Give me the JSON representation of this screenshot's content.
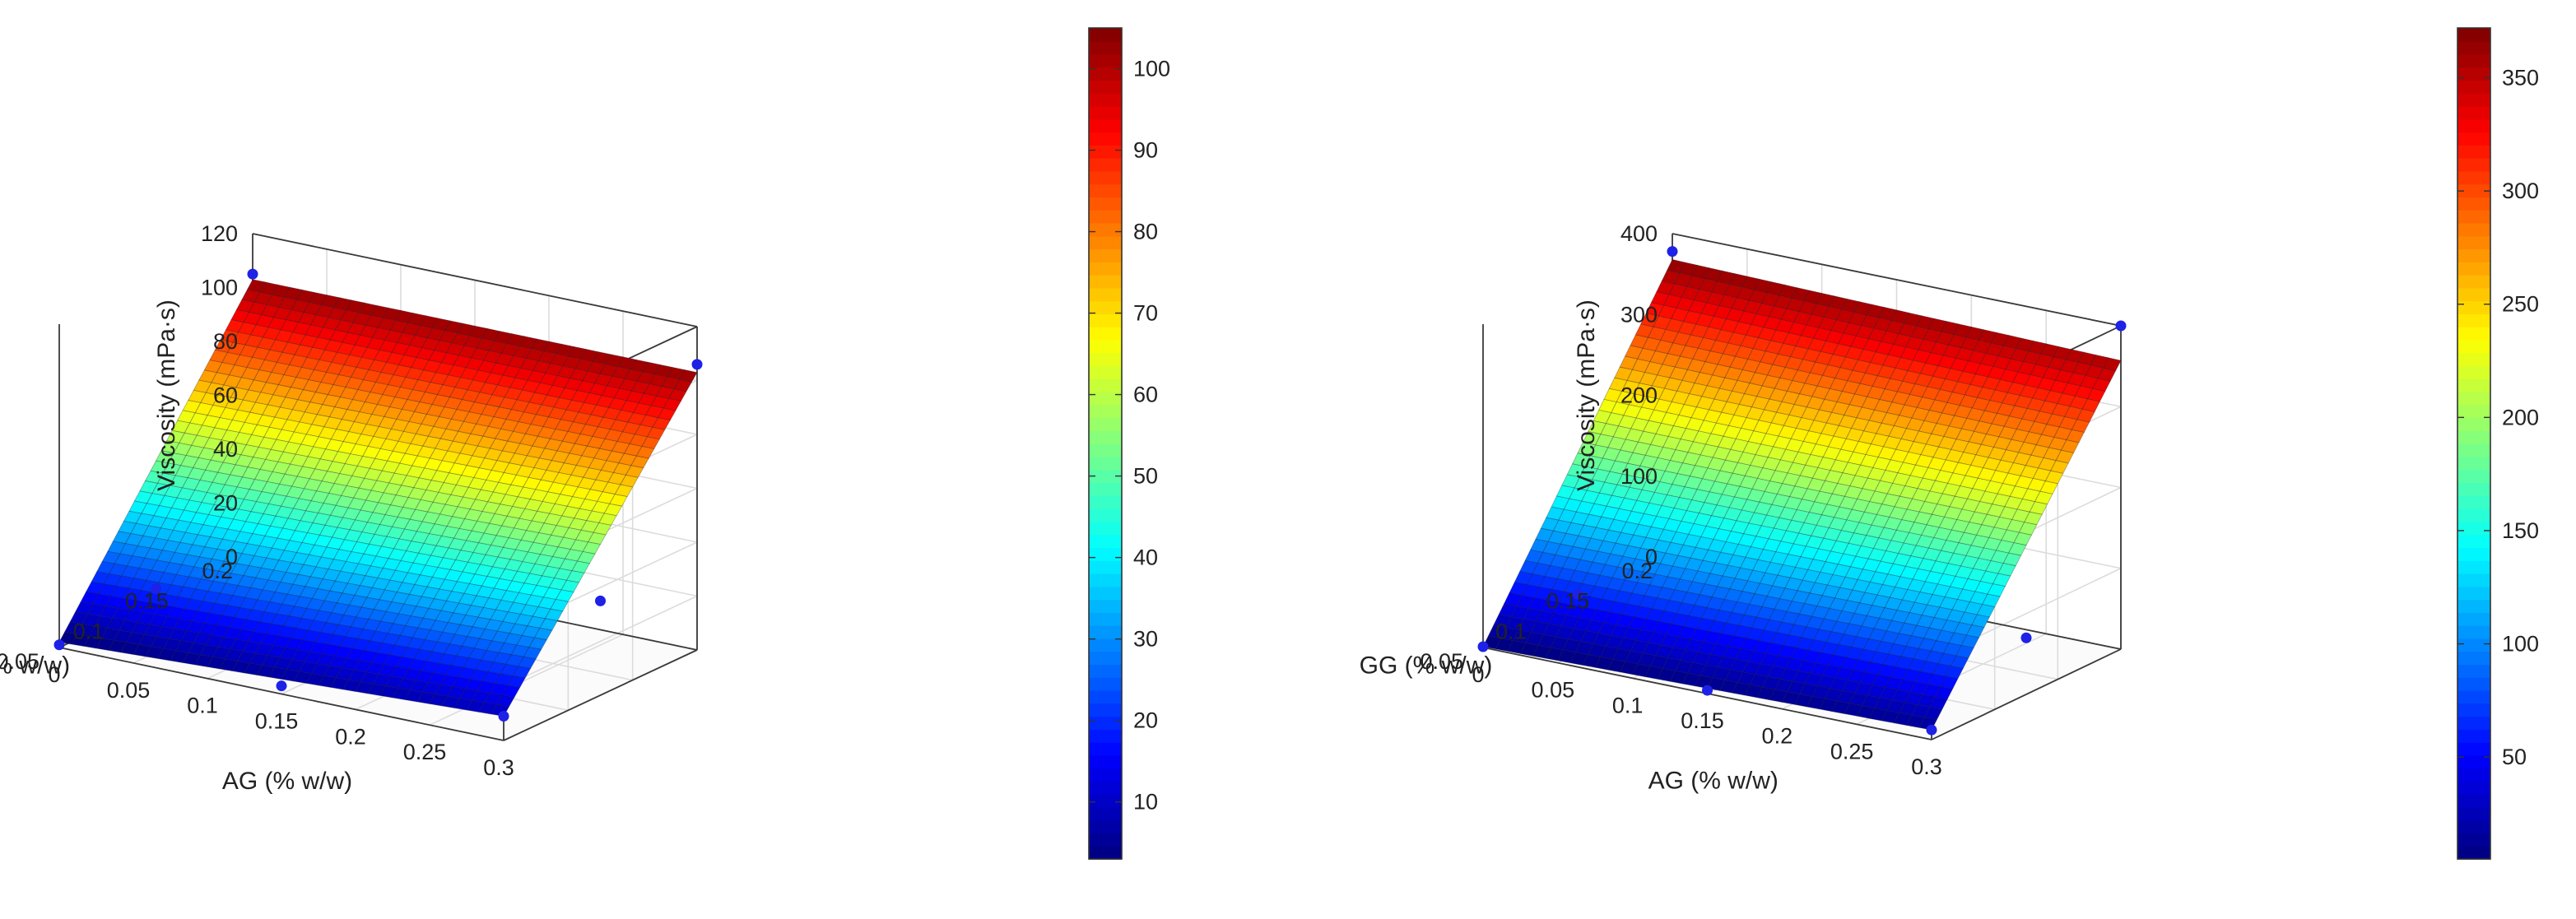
{
  "chart_data": [
    {
      "type": "surface",
      "xlabel": "AG (% w/w)",
      "ylabel": "GG (% w/w)",
      "zlabel": "Viscosity (mPa·s)",
      "xlim": [
        0,
        0.3
      ],
      "ylim": [
        0.05,
        0.2
      ],
      "zlim": [
        0,
        120
      ],
      "x_ticks": [
        "0",
        "0.05",
        "0.1",
        "0.15",
        "0.2",
        "0.25",
        "0.3"
      ],
      "y_ticks": [
        "0.05",
        "0.1",
        "0.15",
        "0.2"
      ],
      "z_ticks": [
        "0",
        "20",
        "40",
        "60",
        "80",
        "100",
        "120"
      ],
      "colorbar": {
        "colormap": "jet",
        "range": [
          3,
          105
        ],
        "ticks": [
          "10",
          "20",
          "30",
          "40",
          "50",
          "60",
          "70",
          "80",
          "90",
          "100"
        ]
      },
      "surface_corners": {
        "ag0_gg005": 2,
        "ag03_gg005": 9,
        "ag0_gg02": 103,
        "ag03_gg02": 103
      },
      "points": [
        {
          "x": 0,
          "y": 0.2,
          "z": 105
        },
        {
          "x": 0.3,
          "y": 0.2,
          "z": 106
        },
        {
          "x": 0.3,
          "y": 0.125,
          "z": 35
        },
        {
          "x": 0.3,
          "y": 0.05,
          "z": 9
        },
        {
          "x": 0,
          "y": 0.125,
          "z": 5
        },
        {
          "x": 0.15,
          "y": 0.05,
          "z": 3
        },
        {
          "x": 0,
          "y": 0.05,
          "z": 1
        }
      ]
    },
    {
      "type": "surface",
      "xlabel": "AG (% w/w)",
      "ylabel": "GG (% w/w)",
      "zlabel": "Viscosity (mPa·s)",
      "xlim": [
        0,
        0.3
      ],
      "ylim": [
        0.05,
        0.2
      ],
      "zlim": [
        0,
        400
      ],
      "x_ticks": [
        "0",
        "0.05",
        "0.1",
        "0.15",
        "0.2",
        "0.25",
        "0.3"
      ],
      "y_ticks": [
        "0.05",
        "0.1",
        "0.15",
        "0.2"
      ],
      "z_ticks": [
        "0",
        "100",
        "200",
        "300",
        "400"
      ],
      "colorbar": {
        "colormap": "jet",
        "range": [
          5,
          372
        ],
        "ticks": [
          "50",
          "100",
          "150",
          "200",
          "250",
          "300",
          "350"
        ]
      },
      "surface_corners": {
        "ag0_gg005": 1,
        "ag03_gg005": 12,
        "ag0_gg02": 368,
        "ag03_gg02": 357
      },
      "points": [
        {
          "x": 0,
          "y": 0.2,
          "z": 378
        },
        {
          "x": 0.3,
          "y": 0.2,
          "z": 400
        },
        {
          "x": 0.3,
          "y": 0.125,
          "z": 70
        },
        {
          "x": 0.3,
          "y": 0.05,
          "z": 12
        },
        {
          "x": 0,
          "y": 0.125,
          "z": 10
        },
        {
          "x": 0.15,
          "y": 0.05,
          "z": 4
        },
        {
          "x": 0,
          "y": 0.05,
          "z": 1
        }
      ]
    }
  ]
}
